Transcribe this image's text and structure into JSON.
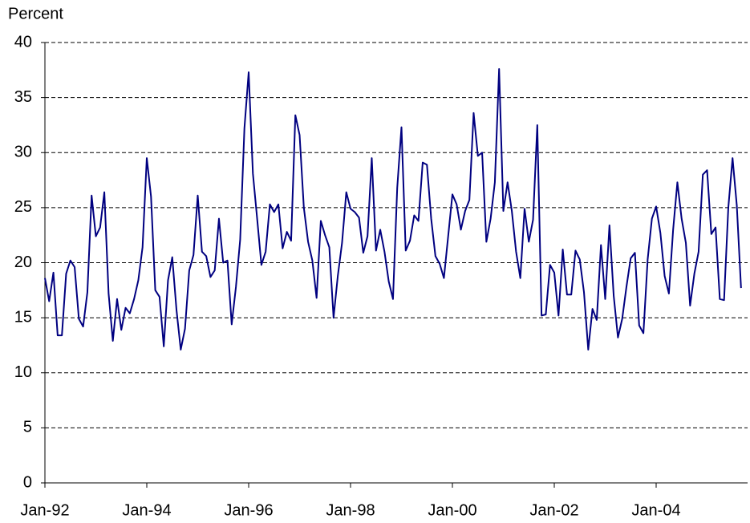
{
  "chart_data": {
    "type": "line",
    "y_label": "Percent",
    "color": "#000080",
    "grid": true,
    "ylim": [
      0,
      40
    ],
    "yticks": [
      0,
      5,
      10,
      15,
      20,
      25,
      30,
      35,
      40
    ],
    "categories": [
      "Jan-92",
      null,
      null,
      null,
      null,
      null,
      null,
      null,
      null,
      null,
      null,
      null,
      null,
      null,
      null,
      null,
      null,
      null,
      null,
      null,
      null,
      null,
      null,
      null,
      "Jan-94",
      null,
      null,
      null,
      null,
      null,
      null,
      null,
      null,
      null,
      null,
      null,
      null,
      null,
      null,
      null,
      null,
      null,
      null,
      null,
      null,
      null,
      null,
      null,
      "Jan-96",
      null,
      null,
      null,
      null,
      null,
      null,
      null,
      null,
      null,
      null,
      null,
      null,
      null,
      null,
      null,
      null,
      null,
      null,
      null,
      null,
      null,
      null,
      null,
      "Jan-98",
      null,
      null,
      null,
      null,
      null,
      null,
      null,
      null,
      null,
      null,
      null,
      null,
      null,
      null,
      null,
      null,
      null,
      null,
      null,
      null,
      null,
      null,
      null,
      "Jan-00",
      null,
      null,
      null,
      null,
      null,
      null,
      null,
      null,
      null,
      null,
      null,
      null,
      null,
      null,
      null,
      null,
      null,
      null,
      null,
      null,
      null,
      null,
      null,
      "Jan-02",
      null,
      null,
      null,
      null,
      null,
      null,
      null,
      null,
      null,
      null,
      null,
      null,
      null,
      null,
      null,
      null,
      null,
      null,
      null,
      null,
      null,
      null,
      null,
      "Jan-04",
      null,
      null,
      null,
      null,
      null,
      null,
      null,
      null,
      null,
      null,
      null,
      null,
      null,
      null,
      null,
      null,
      null,
      null,
      null,
      null
    ],
    "values": [
      18.6,
      16.5,
      19.1,
      13.4,
      13.4,
      19.0,
      20.2,
      19.6,
      14.9,
      14.2,
      17.3,
      26.1,
      22.4,
      23.2,
      26.4,
      17.2,
      12.9,
      16.7,
      13.9,
      15.9,
      15.4,
      16.7,
      18.4,
      21.4,
      29.5,
      26.0,
      17.5,
      16.9,
      12.4,
      18.4,
      20.5,
      15.7,
      12.1,
      14.0,
      19.3,
      20.7,
      26.1,
      21.0,
      20.6,
      18.7,
      19.3,
      24.0,
      20.0,
      20.2,
      14.4,
      17.8,
      22.1,
      32.2,
      37.3,
      28.1,
      24.0,
      19.8,
      21.0,
      25.3,
      24.6,
      25.3,
      21.3,
      22.8,
      22.0,
      33.4,
      31.6,
      25.0,
      21.9,
      20.2,
      16.8,
      23.8,
      22.5,
      21.4,
      15.0,
      18.8,
      21.8,
      26.4,
      24.9,
      24.6,
      24.1,
      20.9,
      22.4,
      29.5,
      21.1,
      23.0,
      21.0,
      18.3,
      16.7,
      26.8,
      32.3,
      21.1,
      22.0,
      24.3,
      23.8,
      29.1,
      28.9,
      24.0,
      20.6,
      19.9,
      18.6,
      22.4,
      26.2,
      25.3,
      23.0,
      24.7,
      25.7,
      33.6,
      29.7,
      30.0,
      21.9,
      24.0,
      27.3,
      37.6,
      24.7,
      27.3,
      24.7,
      21.0,
      18.6,
      24.9,
      21.9,
      23.9,
      32.5,
      15.2,
      15.3,
      19.8,
      19.1,
      15.2,
      21.2,
      17.1,
      17.1,
      21.1,
      20.3,
      17.3,
      12.1,
      15.8,
      14.8,
      21.6,
      16.7,
      23.4,
      17.0,
      13.2,
      14.9,
      17.8,
      20.4,
      20.9,
      14.3,
      13.6,
      20.3,
      24.0,
      25.1,
      22.7,
      18.8,
      17.2,
      23.0,
      27.3,
      24.0,
      21.8,
      16.1,
      19.0,
      21.0,
      28.0,
      28.4,
      22.6,
      23.2,
      16.7,
      16.6,
      25.0,
      29.5,
      25.2,
      17.7
    ]
  }
}
